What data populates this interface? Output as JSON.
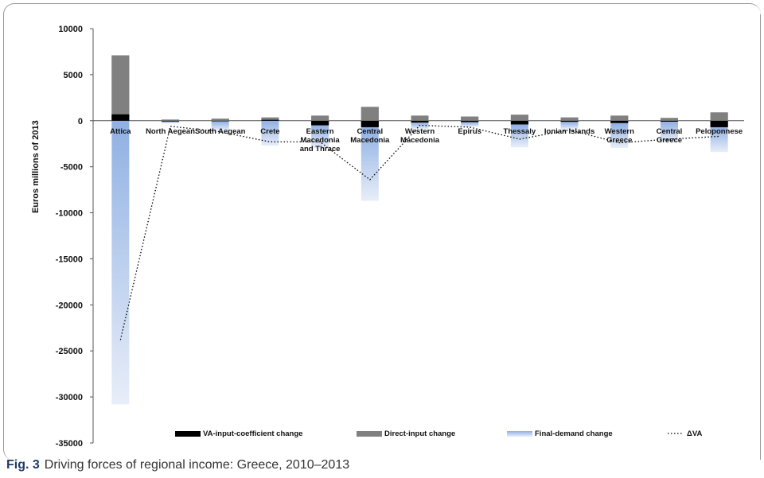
{
  "chart_data": {
    "type": "bar",
    "stacked": true,
    "ylabel": "Euros millions of 2013",
    "ylim": [
      -35000,
      10000
    ],
    "yticks": [
      10000,
      5000,
      0,
      -5000,
      -10000,
      -15000,
      -20000,
      -25000,
      -30000,
      -35000
    ],
    "categories": [
      [
        "Attica"
      ],
      [
        "North Aegean"
      ],
      [
        "South Aegean"
      ],
      [
        "Crete"
      ],
      [
        "Eastern",
        "Macedonia",
        "and Thrace"
      ],
      [
        "Central",
        "Macedonia"
      ],
      [
        "Western",
        "Macedonia"
      ],
      [
        "Epirus"
      ],
      [
        "Thessaly"
      ],
      [
        "Ionian Islands"
      ],
      [
        "Western",
        "Greece"
      ],
      [
        "Central",
        "Greece"
      ],
      [
        "Peloponnese"
      ]
    ],
    "series": [
      {
        "name": "VA-input-coefficient change",
        "kind": "bar",
        "color": "#000000",
        "values": [
          700,
          -80,
          -60,
          100,
          -500,
          -700,
          -200,
          -150,
          -400,
          -120,
          -250,
          -100,
          -700
        ]
      },
      {
        "name": "Direct-input change",
        "kind": "bar",
        "color": "#808080",
        "values": [
          6400,
          120,
          220,
          250,
          550,
          1500,
          550,
          450,
          650,
          350,
          550,
          300,
          900
        ]
      },
      {
        "name": "Final-demand change",
        "kind": "bar",
        "color": "#9db8e6",
        "values": [
          -30800,
          -200,
          -1000,
          -2700,
          -2500,
          -8000,
          -700,
          -500,
          -2500,
          -800,
          -2700,
          -2200,
          -2700
        ]
      },
      {
        "name": "ΔVA",
        "kind": "line",
        "color": "#000000",
        "dash": "dotted",
        "values": [
          -23800,
          -600,
          -1200,
          -2300,
          -2300,
          -6400,
          -500,
          -700,
          -2000,
          -1000,
          -2400,
          -2000,
          -1700
        ]
      }
    ],
    "legend_position": "bottom"
  },
  "caption": {
    "label": "Fig. 3",
    "text": "Driving forces of regional income: Greece, 2010–2013"
  }
}
